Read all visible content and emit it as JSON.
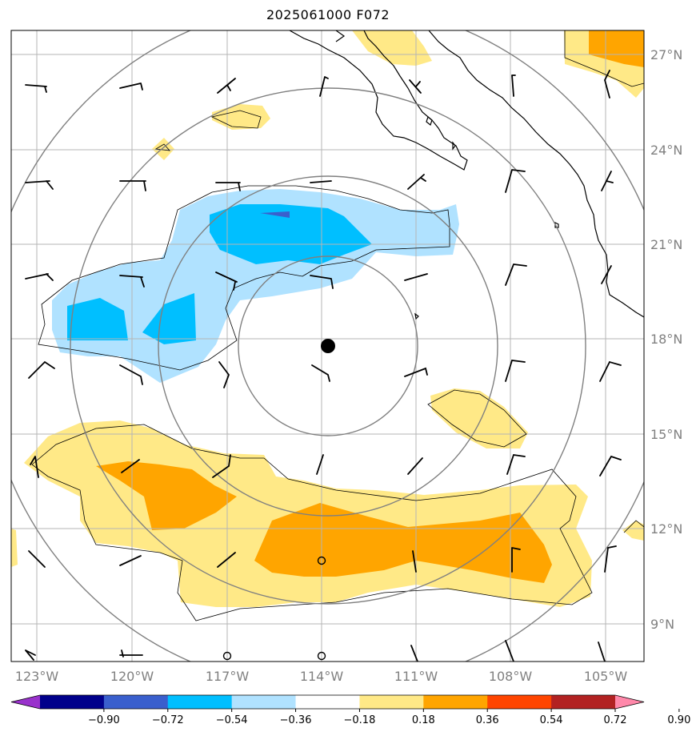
{
  "title": "2025061000 F072",
  "lon_labels": [
    "123°W",
    "120°W",
    "117°W",
    "114°W",
    "111°W",
    "108°W",
    "105°W"
  ],
  "lat_labels": [
    "27°N",
    "24°N",
    "21°N",
    "18°N",
    "15°N",
    "12°N",
    "9°N"
  ],
  "colorbar": {
    "levels": [
      "−0.90",
      "−0.72",
      "−0.54",
      "−0.36",
      "−0.18",
      "0.18",
      "0.36",
      "0.54",
      "0.72",
      "0.90"
    ],
    "colors": [
      "#9932CC",
      "#00008B",
      "#3A5FCD",
      "#00BFFF",
      "#B0E2FF",
      "#FFFFFF",
      "#FFE987",
      "#FFA500",
      "#FF4500",
      "#B22222",
      "#FF88AA"
    ]
  },
  "storm_center": {
    "lon": -113.8,
    "lat": 17.8
  },
  "range_rings": "concentric circles around storm center",
  "coastline": "Baja California / western Mexico",
  "wind_barbs": "black barbs on 3° grid"
}
